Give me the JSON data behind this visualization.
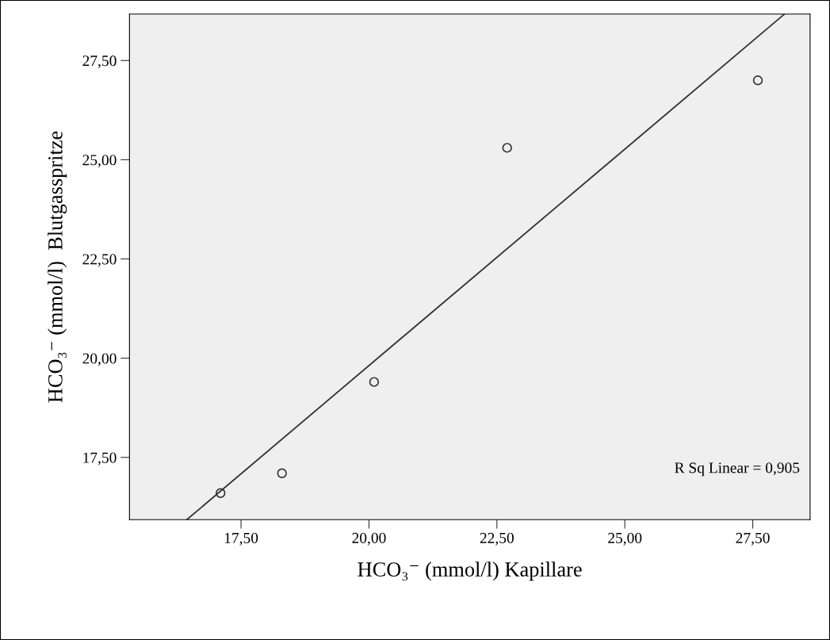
{
  "chart_data": {
    "type": "scatter",
    "xlabel": "HCO₃⁻ (mmol/l) Kapillare",
    "ylabel": "HCO₃⁻ (mmol/l)  Blutgasspritze",
    "series": [
      {
        "color": "#333333",
        "marker": "circle",
        "x": [
          17.1,
          18.3,
          20.1,
          22.7,
          27.6
        ],
        "values": [
          16.6,
          17.1,
          19.4,
          25.3,
          27.0
        ]
      },
      {
        "type": "line",
        "color": "#333333",
        "marker": "none",
        "x": [
          16.44,
          28.12
        ],
        "values": [
          15.93,
          28.67
        ]
      }
    ],
    "xlim": [
      15.32,
      28.62
    ],
    "ylim": [
      15.93,
      28.67
    ],
    "xticks": [
      {
        "value": 17.5,
        "label": "17,50"
      },
      {
        "value": 20,
        "label": "20,00"
      },
      {
        "value": 22.5,
        "label": "22,50"
      },
      {
        "value": 25,
        "label": "25,00"
      },
      {
        "value": 27.5,
        "label": "27,50"
      }
    ],
    "yticks": [
      {
        "value": 17.5,
        "label": "17,50"
      },
      {
        "value": 20,
        "label": "20,00"
      },
      {
        "value": 22.5,
        "label": "22,50"
      },
      {
        "value": 25,
        "label": "25,00"
      },
      {
        "value": 27.5,
        "label": "27,50"
      }
    ],
    "annotations": [
      "R Sq Linear = 0,905"
    ],
    "grid": false,
    "legend": false
  }
}
